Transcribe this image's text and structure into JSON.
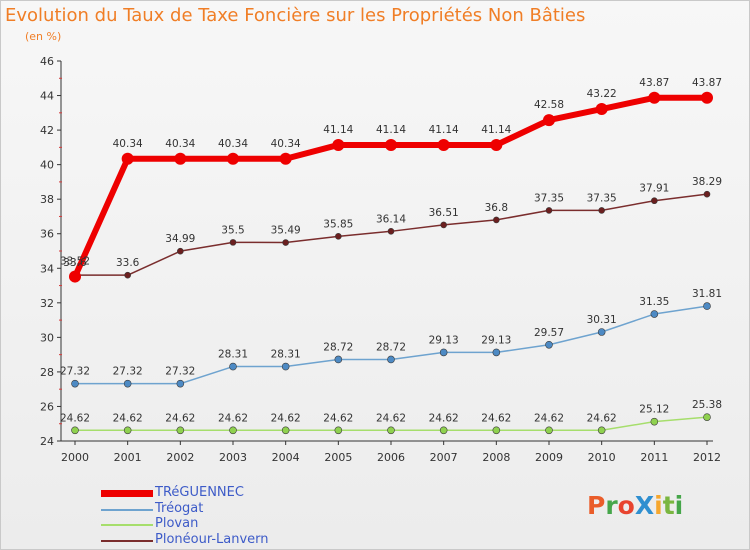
{
  "title": "Evolution du Taux de Taxe Foncière sur les Propriétés Non Bâties",
  "unit": "(en %)",
  "brand": "ProXiti",
  "chart_data": {
    "type": "line",
    "title": "Evolution du Taux de Taxe Foncière sur les Propriétés Non Bâties",
    "ylabel": "(en %)",
    "xlabel": "",
    "ylim": [
      24,
      46
    ],
    "ytick_step": 2,
    "grid": false,
    "categories": [
      "2000",
      "2001",
      "2002",
      "2003",
      "2004",
      "2005",
      "2006",
      "2007",
      "2008",
      "2009",
      "2010",
      "2011",
      "2012"
    ],
    "series": [
      {
        "name": "TRéGUENNEC",
        "color": "#ee0000",
        "marker": "#ee0000",
        "width": 6,
        "radius": 6,
        "values": [
          33.52,
          40.34,
          40.34,
          40.34,
          40.34,
          41.14,
          41.14,
          41.14,
          41.14,
          42.58,
          43.22,
          43.87,
          43.87
        ],
        "labels": [
          "33.52",
          "40.34",
          "40.34",
          "40.34",
          "40.34",
          "41.14",
          "41.14",
          "41.14",
          "41.14",
          "42.58",
          "43.22",
          "43.87",
          "43.87"
        ]
      },
      {
        "name": "Tréogat",
        "color": "#6ea3cf",
        "marker": "#4d8ac4",
        "width": 1.5,
        "radius": 3.5,
        "values": [
          27.32,
          27.32,
          27.32,
          28.31,
          28.31,
          28.72,
          28.72,
          29.13,
          29.13,
          29.57,
          30.31,
          31.35,
          31.81
        ],
        "labels": [
          "27.32",
          "27.32",
          "27.32",
          "28.31",
          "28.31",
          "28.72",
          "28.72",
          "29.13",
          "29.13",
          "29.57",
          "30.31",
          "31.35",
          "31.81"
        ]
      },
      {
        "name": "Plovan",
        "color": "#a6de6c",
        "marker": "#8fd14f",
        "width": 1.5,
        "radius": 3.5,
        "values": [
          24.62,
          24.62,
          24.62,
          24.62,
          24.62,
          24.62,
          24.62,
          24.62,
          24.62,
          24.62,
          24.62,
          25.12,
          25.38
        ],
        "labels": [
          "24.62",
          "24.62",
          "24.62",
          "24.62",
          "24.62",
          "24.62",
          "24.62",
          "24.62",
          "24.62",
          "24.62",
          "24.62",
          "25.12",
          "25.38"
        ]
      },
      {
        "name": "Plonéour-Lanvern",
        "color": "#7a2d2d",
        "marker": "#6b1f1f",
        "width": 1.5,
        "radius": 3,
        "values": [
          33.6,
          33.6,
          34.99,
          35.5,
          35.49,
          35.85,
          36.14,
          36.51,
          36.8,
          37.35,
          37.35,
          37.91,
          38.29
        ],
        "labels": [
          "33.6",
          "33.6",
          "34.99",
          "35.5",
          "35.49",
          "35.85",
          "36.14",
          "36.51",
          "36.8",
          "37.35",
          "37.35",
          "37.91",
          "38.29"
        ]
      }
    ]
  }
}
